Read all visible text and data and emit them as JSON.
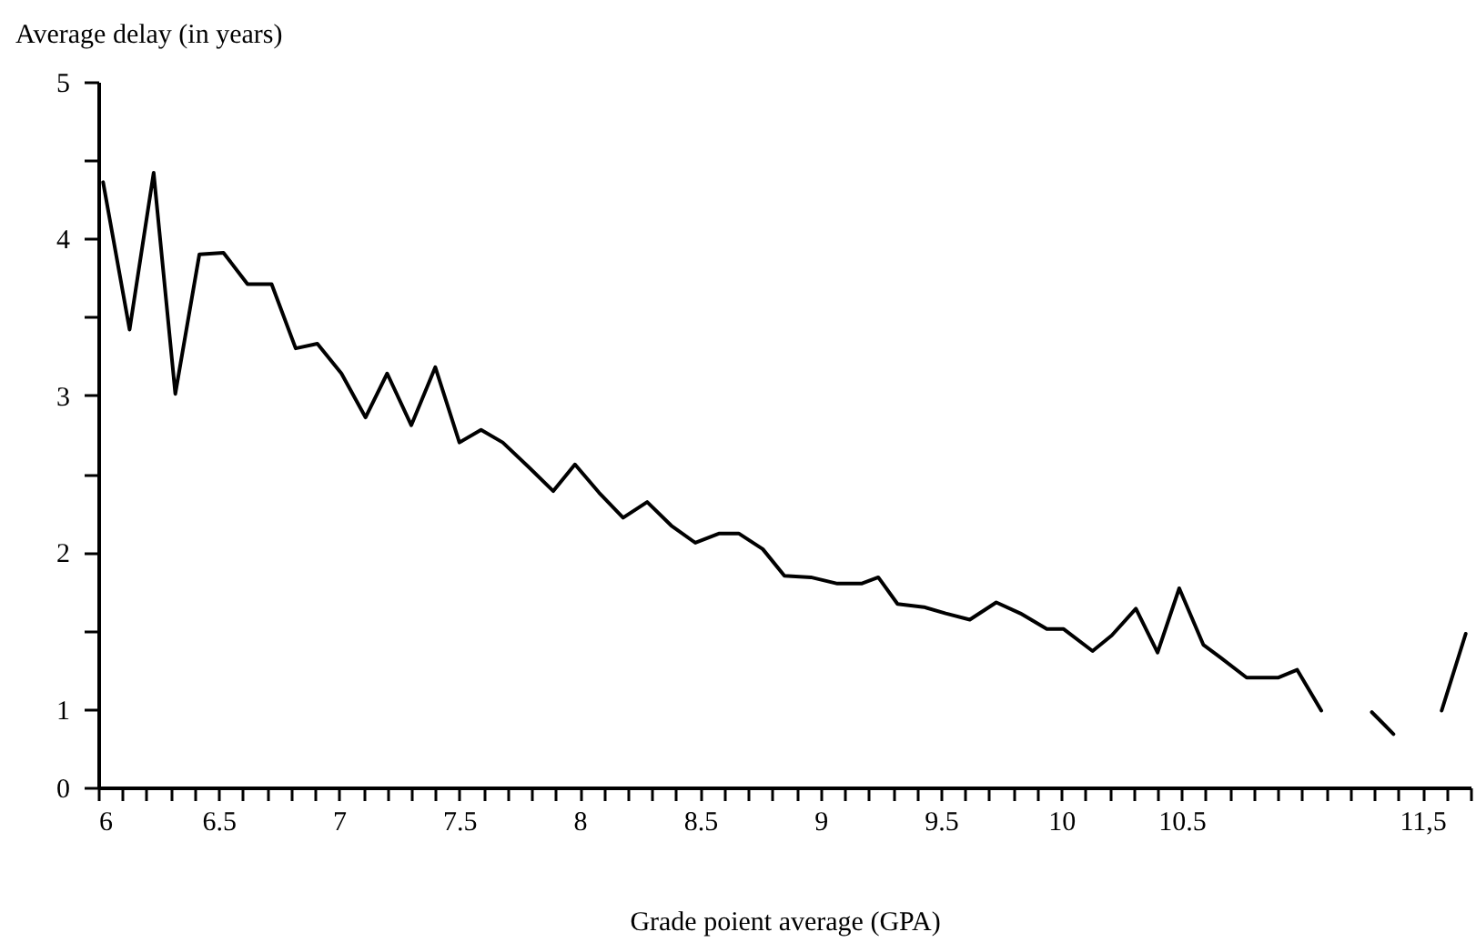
{
  "chart_data": {
    "type": "line",
    "xlabel": "Grade poient average (GPA)",
    "ylabel": "Average delay (in years)",
    "x": [
      6.02,
      6.13,
      6.23,
      6.32,
      6.42,
      6.52,
      6.62,
      6.72,
      6.82,
      6.91,
      7.01,
      7.11,
      7.2,
      7.3,
      7.4,
      7.5,
      7.59,
      7.68,
      7.79,
      7.89,
      7.98,
      8.08,
      8.18,
      8.28,
      8.38,
      8.48,
      8.58,
      8.66,
      8.76,
      8.85,
      8.96,
      9.07,
      9.17,
      9.24,
      9.32,
      9.43,
      9.52,
      9.62,
      9.73,
      9.83,
      9.94,
      10.01,
      10.13,
      10.21,
      10.31,
      10.4,
      10.49,
      10.59,
      10.66,
      10.77,
      10.9,
      10.98,
      11.08,
      11.18,
      11.29,
      11.38,
      11.48,
      11.58,
      11.68
    ],
    "series": [
      {
        "color": "#000000",
        "values": [
          4.36,
          3.42,
          4.42,
          3.01,
          3.9,
          3.91,
          3.71,
          3.71,
          3.3,
          3.33,
          3.14,
          2.86,
          3.14,
          2.81,
          3.18,
          2.7,
          2.78,
          2.7,
          2.54,
          2.39,
          2.56,
          2.38,
          2.22,
          2.32,
          2.17,
          2.06,
          2.12,
          2.12,
          2.02,
          1.85,
          1.84,
          1.8,
          1.8,
          1.84,
          1.67,
          1.65,
          1.61,
          1.57,
          1.68,
          1.61,
          1.51,
          1.51,
          1.37,
          1.47,
          1.64,
          1.36,
          1.77,
          1.41,
          1.33,
          1.2,
          1.2,
          1.25,
          0.99,
          null,
          0.98,
          0.84,
          null,
          0.99,
          1.48
        ]
      }
    ],
    "xlim": [
      6,
      11.7
    ],
    "ylim": [
      0.5,
      5
    ],
    "xticks": [
      6,
      {
        "value": 6.1,
        "label": null
      },
      {
        "value": 6.2,
        "label": null
      },
      {
        "value": 6.3,
        "label": null
      },
      {
        "value": 6.4,
        "label": null
      },
      6.5,
      {
        "value": 6.6,
        "label": null
      },
      {
        "value": 6.7,
        "label": null
      },
      {
        "value": 6.8,
        "label": null
      },
      {
        "value": 6.9,
        "label": null
      },
      7,
      {
        "value": 7.1,
        "label": null
      },
      {
        "value": 7.2,
        "label": null
      },
      {
        "value": 7.3,
        "label": null
      },
      {
        "value": 7.4,
        "label": null
      },
      7.5,
      {
        "value": 7.6,
        "label": null
      },
      {
        "value": 7.7,
        "label": null
      },
      {
        "value": 7.8,
        "label": null
      },
      {
        "value": 7.9,
        "label": null
      },
      8,
      {
        "value": 8.1,
        "label": null
      },
      {
        "value": 8.2,
        "label": null
      },
      {
        "value": 8.3,
        "label": null
      },
      {
        "value": 8.4,
        "label": null
      },
      8.5,
      {
        "value": 8.6,
        "label": null
      },
      {
        "value": 8.7,
        "label": null
      },
      {
        "value": 8.8,
        "label": null
      },
      {
        "value": 8.9,
        "label": null
      },
      9,
      {
        "value": 9.1,
        "label": null
      },
      {
        "value": 9.2,
        "label": null
      },
      {
        "value": 9.3,
        "label": null
      },
      {
        "value": 9.4,
        "label": null
      },
      9.5,
      {
        "value": 9.6,
        "label": null
      },
      {
        "value": 9.7,
        "label": null
      },
      {
        "value": 9.8,
        "label": null
      },
      {
        "value": 9.9,
        "label": null
      },
      10,
      {
        "value": 10.1,
        "label": null
      },
      {
        "value": 10.2,
        "label": null
      },
      {
        "value": 10.3,
        "label": null
      },
      {
        "value": 10.4,
        "label": null
      },
      10.5,
      {
        "value": 10.6,
        "label": null
      },
      {
        "value": 10.7,
        "label": null
      },
      {
        "value": 10.8,
        "label": null
      },
      {
        "value": 10.9,
        "label": null
      },
      {
        "value": 11,
        "label": null
      },
      {
        "value": 11.1,
        "label": null
      },
      {
        "value": 11.2,
        "label": null
      },
      {
        "value": 11.3,
        "label": null
      },
      {
        "value": 11.4,
        "label": null
      },
      {
        "value": 11.5,
        "label": "11,5"
      },
      {
        "value": 11.6,
        "label": null
      },
      {
        "value": 11.7,
        "label": null
      }
    ],
    "yticks": [
      {
        "value": 0.5,
        "label": "0"
      },
      1,
      {
        "value": 1.5,
        "label": null
      },
      2,
      {
        "value": 2.5,
        "label": null
      },
      3,
      {
        "value": 3.5,
        "label": null
      },
      4,
      {
        "value": 4.5,
        "label": null
      },
      5
    ],
    "grid": false,
    "marker": "none",
    "line_style": "solid"
  }
}
